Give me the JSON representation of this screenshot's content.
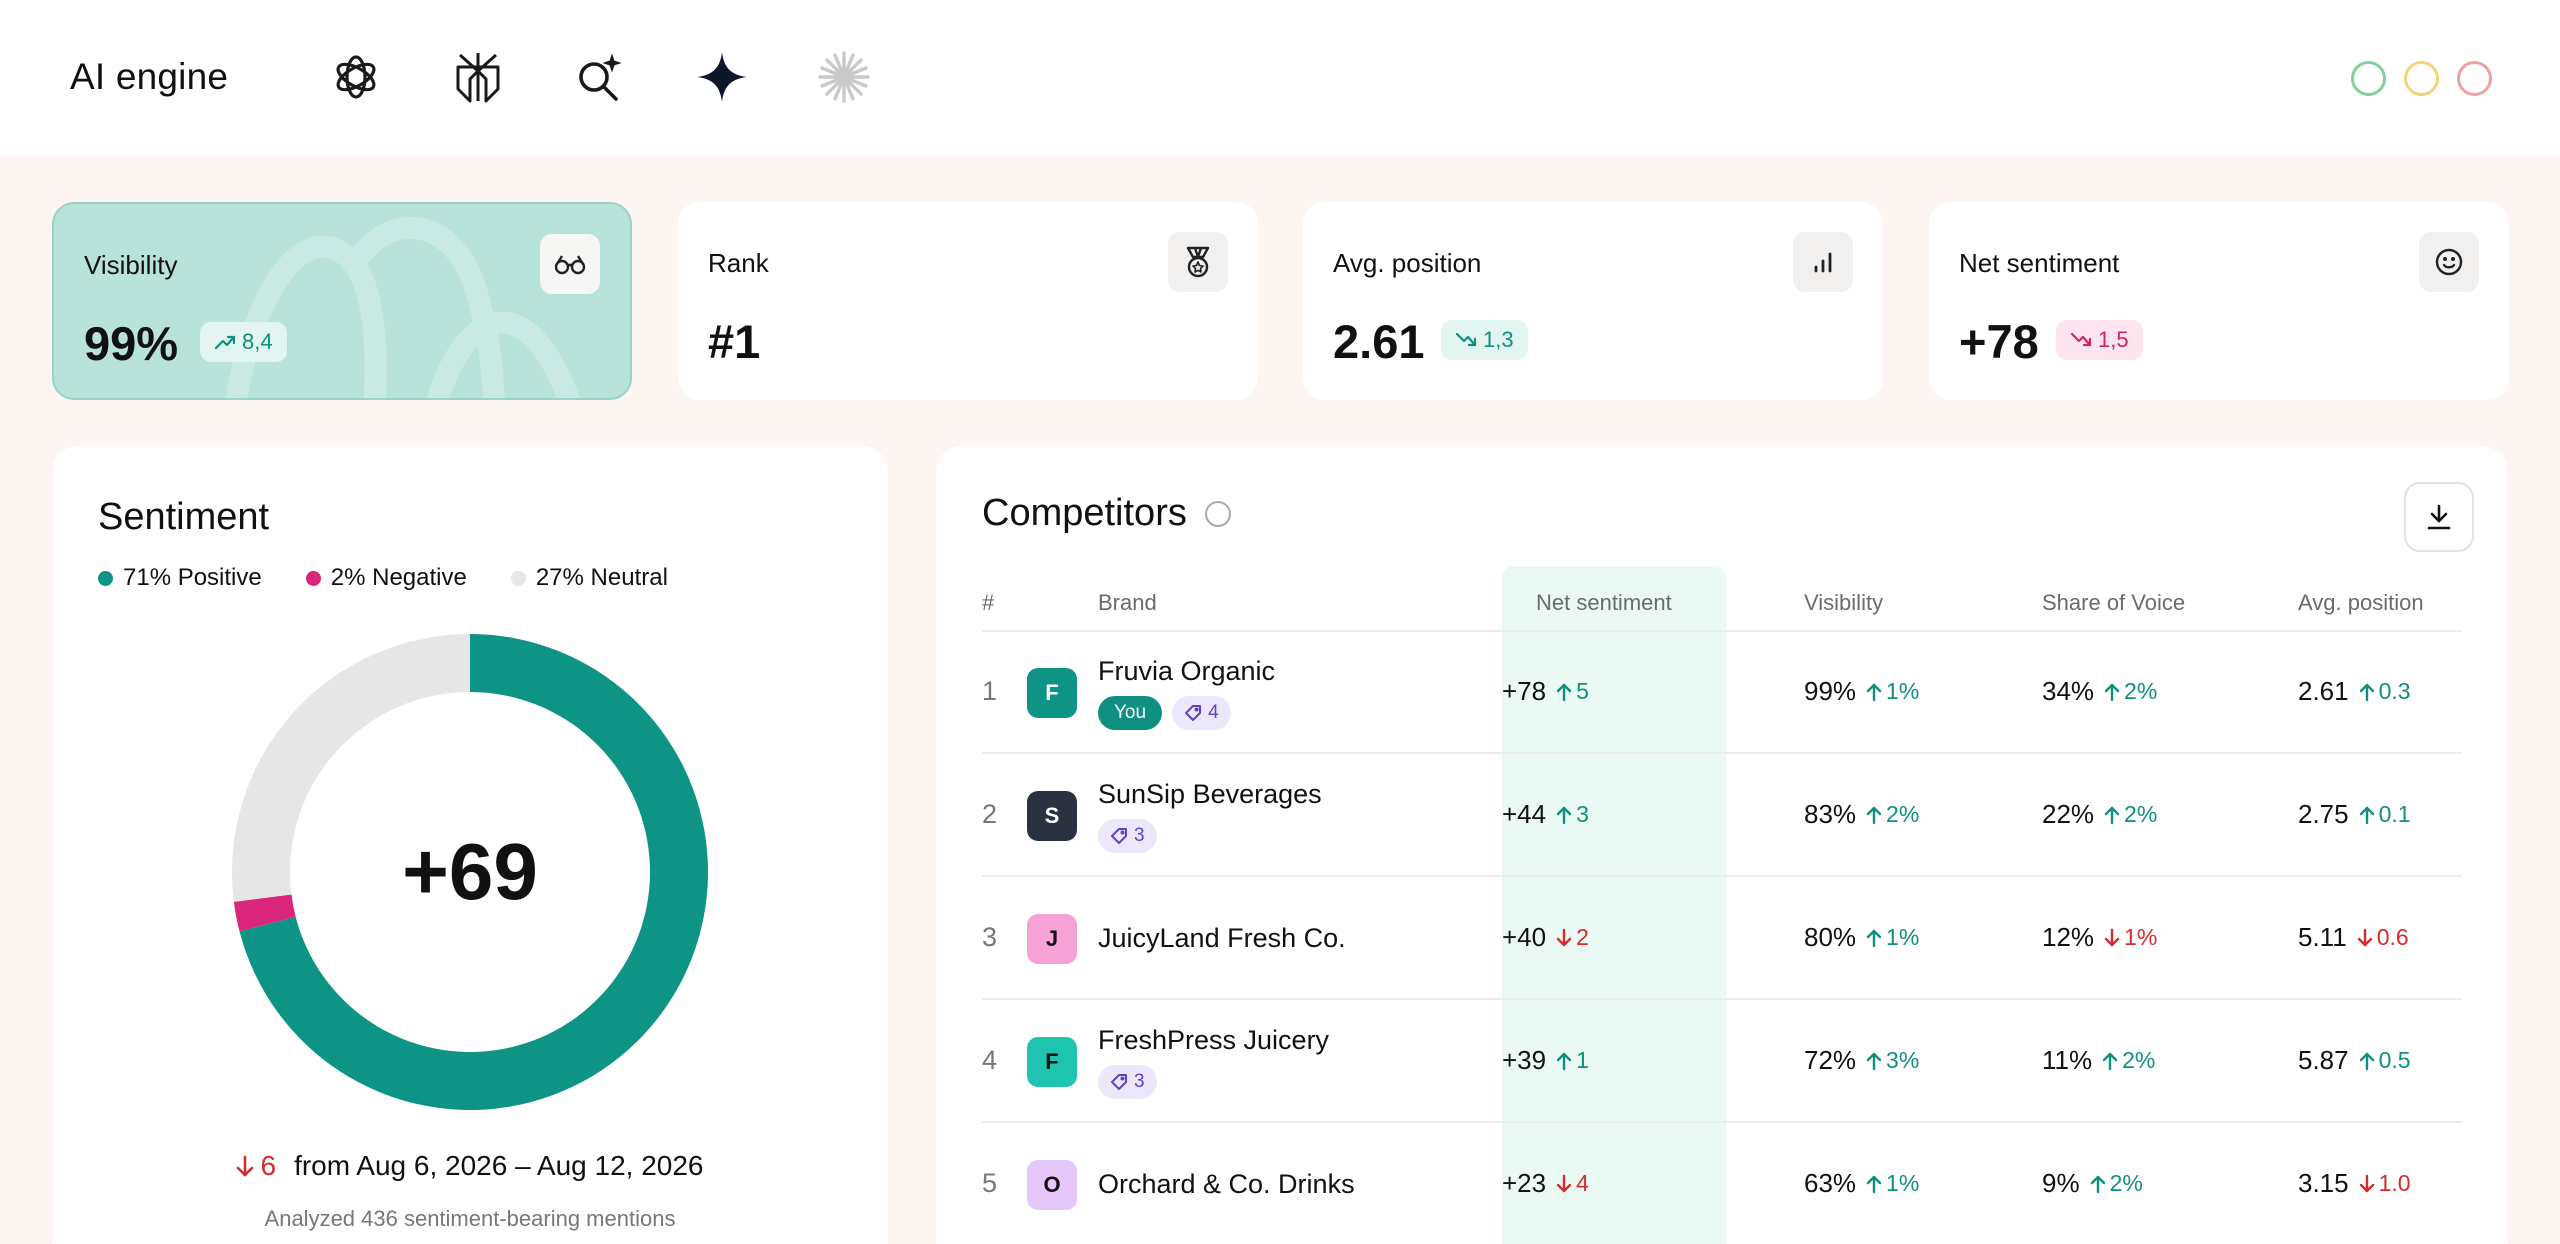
{
  "header": {
    "title": "AI engine",
    "engines": [
      {
        "icon": "chatgpt-icon"
      },
      {
        "icon": "perplexity-icon"
      },
      {
        "icon": "ai-search-icon"
      },
      {
        "icon": "gemini-icon"
      },
      {
        "icon": "claude-icon"
      }
    ],
    "window_dots": [
      "#7ed39a",
      "#f5d27a",
      "#f0a0a0"
    ]
  },
  "kpis": [
    {
      "label": "Visibility",
      "value": "99%",
      "badge": "8,4",
      "trend": "up",
      "icon": "glasses-icon"
    },
    {
      "label": "Rank",
      "value": "#1",
      "icon": "medal-icon"
    },
    {
      "label": "Avg. position",
      "value": "2.61",
      "badge": "1,3",
      "trend": "down-good",
      "icon": "bar-chart-icon"
    },
    {
      "label": "Net sentiment",
      "value": "+78",
      "badge": "1,5",
      "trend": "down-bad",
      "icon": "smile-icon"
    }
  ],
  "sentiment": {
    "title": "Sentiment",
    "legend": [
      {
        "label": "71% Positive",
        "color": "#0e9484"
      },
      {
        "label": "2% Negative",
        "color": "#d9267a"
      },
      {
        "label": "27% Neutral",
        "color": "#e6e6e6"
      }
    ],
    "score": "+69",
    "change": "6",
    "period": "from Aug 6, 2026 – Aug 12, 2026",
    "analyzed": "Analyzed 436 sentiment-bearing mentions",
    "segments": [
      {
        "name": "positive",
        "percent": 71,
        "color": "#0e9484"
      },
      {
        "name": "negative",
        "percent": 2,
        "color": "#d9267a"
      },
      {
        "name": "neutral",
        "percent": 27,
        "color": "#e6e6e6"
      }
    ]
  },
  "competitors": {
    "title": "Competitors",
    "columns": {
      "rank": "#",
      "brand": "Brand",
      "net_sentiment": "Net sentiment",
      "visibility": "Visibility",
      "sov": "Share of Voice",
      "avg_position": "Avg. position"
    },
    "rows": [
      {
        "rank": "1",
        "initial": "F",
        "logo_bg": "#0e9484",
        "logo_fg": "#ffffff",
        "brand": "Fruvia Organic",
        "you": "You",
        "mentions": "4",
        "ns": "+78",
        "ns_d": "5",
        "ns_t": "up",
        "vis": "99%",
        "vis_d": "1%",
        "vis_t": "up",
        "sov": "34%",
        "sov_d": "2%",
        "sov_t": "up",
        "pos": "2.61",
        "pos_d": "0.3",
        "pos_t": "up"
      },
      {
        "rank": "2",
        "initial": "S",
        "logo_bg": "#2a3140",
        "logo_fg": "#ffffff",
        "brand": "SunSip Beverages",
        "mentions": "3",
        "ns": "+44",
        "ns_d": "3",
        "ns_t": "up",
        "vis": "83%",
        "vis_d": "2%",
        "vis_t": "up",
        "sov": "22%",
        "sov_d": "2%",
        "sov_t": "up",
        "pos": "2.75",
        "pos_d": "0.1",
        "pos_t": "up"
      },
      {
        "rank": "3",
        "initial": "J",
        "logo_bg": "#f7a3d6",
        "logo_fg": "#111111",
        "brand": "JuicyLand Fresh Co.",
        "ns": "+40",
        "ns_d": "2",
        "ns_t": "down",
        "vis": "80%",
        "vis_d": "1%",
        "vis_t": "up",
        "sov": "12%",
        "sov_d": "1%",
        "sov_t": "down",
        "pos": "5.11",
        "pos_d": "0.6",
        "pos_t": "down"
      },
      {
        "rank": "4",
        "initial": "F",
        "logo_bg": "#1fc4b0",
        "logo_fg": "#111111",
        "brand": "FreshPress Juicery",
        "mentions": "3",
        "ns": "+39",
        "ns_d": "1",
        "ns_t": "up",
        "vis": "72%",
        "vis_d": "3%",
        "vis_t": "up",
        "sov": "11%",
        "sov_d": "2%",
        "sov_t": "up",
        "pos": "5.87",
        "pos_d": "0.5",
        "pos_t": "up"
      },
      {
        "rank": "5",
        "initial": "O",
        "logo_bg": "#e6c7fb",
        "logo_fg": "#111111",
        "brand": "Orchard & Co. Drinks",
        "ns": "+23",
        "ns_d": "4",
        "ns_t": "down",
        "vis": "63%",
        "vis_d": "1%",
        "vis_t": "up",
        "sov": "9%",
        "sov_d": "2%",
        "sov_t": "up",
        "pos": "3.15",
        "pos_d": "1.0",
        "pos_t": "down"
      }
    ]
  }
}
